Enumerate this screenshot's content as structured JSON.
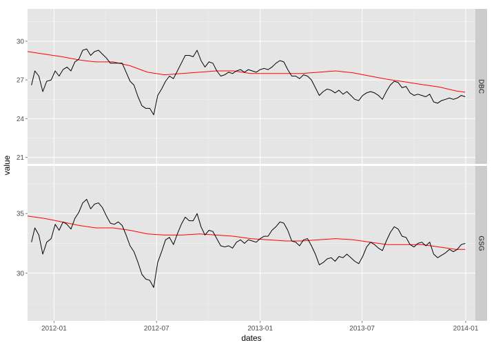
{
  "chart_data": {
    "type": "line",
    "xlabel": "dates",
    "ylabel": "value",
    "x_ticks": [
      "2012-01",
      "2012-07",
      "2013-01",
      "2013-07",
      "2014-01"
    ],
    "x_range": [
      "2011-11-15",
      "2014-01-18"
    ],
    "grid": true,
    "colors": {
      "panel_bg": "#e5e5e5",
      "grid": "#ffffff",
      "strip_bg": "#cccccc",
      "price": "#000000",
      "moving_average": "#ff0000"
    },
    "series_style": [
      {
        "role": "price",
        "color": "#000000"
      },
      {
        "role": "moving_average",
        "color": "#ff0000"
      }
    ],
    "panels": [
      {
        "strip": "DBC",
        "ylim": [
          20.5,
          32.5
        ],
        "y_ticks": [
          21,
          24,
          27,
          30
        ],
        "price": [
          [
            "2011-11-22",
            26.6
          ],
          [
            "2011-11-28",
            27.7
          ],
          [
            "2011-12-05",
            27.3
          ],
          [
            "2011-12-12",
            26.1
          ],
          [
            "2011-12-19",
            26.9
          ],
          [
            "2011-12-27",
            27.0
          ],
          [
            "2012-01-03",
            27.7
          ],
          [
            "2012-01-10",
            27.3
          ],
          [
            "2012-01-17",
            27.8
          ],
          [
            "2012-01-24",
            28.0
          ],
          [
            "2012-01-31",
            27.7
          ],
          [
            "2012-02-07",
            28.4
          ],
          [
            "2012-02-14",
            28.6
          ],
          [
            "2012-02-21",
            29.3
          ],
          [
            "2012-02-28",
            29.4
          ],
          [
            "2012-03-06",
            28.9
          ],
          [
            "2012-03-13",
            29.2
          ],
          [
            "2012-03-20",
            29.3
          ],
          [
            "2012-03-27",
            29.0
          ],
          [
            "2012-04-03",
            28.7
          ],
          [
            "2012-04-10",
            28.3
          ],
          [
            "2012-04-17",
            28.3
          ],
          [
            "2012-04-24",
            28.3
          ],
          [
            "2012-05-01",
            28.3
          ],
          [
            "2012-05-08",
            27.6
          ],
          [
            "2012-05-15",
            26.9
          ],
          [
            "2012-05-22",
            26.6
          ],
          [
            "2012-05-29",
            25.7
          ],
          [
            "2012-06-05",
            25.0
          ],
          [
            "2012-06-12",
            24.8
          ],
          [
            "2012-06-19",
            24.8
          ],
          [
            "2012-06-26",
            24.3
          ],
          [
            "2012-07-03",
            25.8
          ],
          [
            "2012-07-10",
            26.3
          ],
          [
            "2012-07-17",
            26.9
          ],
          [
            "2012-07-24",
            27.3
          ],
          [
            "2012-07-31",
            27.1
          ],
          [
            "2012-08-07",
            27.7
          ],
          [
            "2012-08-14",
            28.3
          ],
          [
            "2012-08-21",
            28.9
          ],
          [
            "2012-08-28",
            28.9
          ],
          [
            "2012-09-04",
            28.8
          ],
          [
            "2012-09-11",
            29.3
          ],
          [
            "2012-09-18",
            28.5
          ],
          [
            "2012-09-25",
            28.0
          ],
          [
            "2012-10-02",
            28.4
          ],
          [
            "2012-10-09",
            28.3
          ],
          [
            "2012-10-16",
            27.7
          ],
          [
            "2012-10-23",
            27.3
          ],
          [
            "2012-10-30",
            27.4
          ],
          [
            "2012-11-06",
            27.6
          ],
          [
            "2012-11-13",
            27.5
          ],
          [
            "2012-11-20",
            27.7
          ],
          [
            "2012-11-27",
            27.8
          ],
          [
            "2012-12-04",
            27.6
          ],
          [
            "2012-12-11",
            27.8
          ],
          [
            "2012-12-18",
            27.7
          ],
          [
            "2012-12-25",
            27.6
          ],
          [
            "2013-01-01",
            27.8
          ],
          [
            "2013-01-08",
            27.9
          ],
          [
            "2013-01-15",
            27.8
          ],
          [
            "2013-01-22",
            28.0
          ],
          [
            "2013-01-29",
            28.3
          ],
          [
            "2013-02-05",
            28.5
          ],
          [
            "2013-02-12",
            28.4
          ],
          [
            "2013-02-19",
            27.8
          ],
          [
            "2013-02-26",
            27.3
          ],
          [
            "2013-03-05",
            27.3
          ],
          [
            "2013-03-12",
            27.1
          ],
          [
            "2013-03-19",
            27.4
          ],
          [
            "2013-03-26",
            27.3
          ],
          [
            "2013-04-02",
            27.0
          ],
          [
            "2013-04-09",
            26.4
          ],
          [
            "2013-04-16",
            25.8
          ],
          [
            "2013-04-23",
            26.1
          ],
          [
            "2013-04-30",
            26.3
          ],
          [
            "2013-05-07",
            26.2
          ],
          [
            "2013-05-14",
            26.0
          ],
          [
            "2013-05-21",
            26.2
          ],
          [
            "2013-05-28",
            25.9
          ],
          [
            "2013-06-04",
            26.1
          ],
          [
            "2013-06-11",
            25.8
          ],
          [
            "2013-06-18",
            25.5
          ],
          [
            "2013-06-25",
            25.4
          ],
          [
            "2013-07-02",
            25.8
          ],
          [
            "2013-07-09",
            26.0
          ],
          [
            "2013-07-16",
            26.1
          ],
          [
            "2013-07-23",
            26.0
          ],
          [
            "2013-07-30",
            25.8
          ],
          [
            "2013-08-06",
            25.5
          ],
          [
            "2013-08-13",
            26.1
          ],
          [
            "2013-08-20",
            26.6
          ],
          [
            "2013-08-27",
            26.9
          ],
          [
            "2013-09-03",
            26.8
          ],
          [
            "2013-09-10",
            26.4
          ],
          [
            "2013-09-17",
            26.5
          ],
          [
            "2013-09-24",
            26.0
          ],
          [
            "2013-10-01",
            25.8
          ],
          [
            "2013-10-08",
            25.9
          ],
          [
            "2013-10-15",
            25.8
          ],
          [
            "2013-10-22",
            25.7
          ],
          [
            "2013-10-29",
            25.9
          ],
          [
            "2013-11-05",
            25.3
          ],
          [
            "2013-11-12",
            25.2
          ],
          [
            "2013-11-19",
            25.4
          ],
          [
            "2013-11-26",
            25.5
          ],
          [
            "2013-12-03",
            25.6
          ],
          [
            "2013-12-10",
            25.5
          ],
          [
            "2013-12-17",
            25.6
          ],
          [
            "2013-12-24",
            25.8
          ],
          [
            "2013-12-31",
            25.7
          ]
        ],
        "moving_average": [
          [
            "2011-11-15",
            29.2
          ],
          [
            "2011-12-15",
            29.0
          ],
          [
            "2012-01-15",
            28.8
          ],
          [
            "2012-02-15",
            28.55
          ],
          [
            "2012-03-15",
            28.4
          ],
          [
            "2012-04-15",
            28.4
          ],
          [
            "2012-05-15",
            28.1
          ],
          [
            "2012-06-15",
            27.6
          ],
          [
            "2012-07-15",
            27.4
          ],
          [
            "2012-08-15",
            27.5
          ],
          [
            "2012-09-15",
            27.6
          ],
          [
            "2012-10-15",
            27.7
          ],
          [
            "2012-11-15",
            27.7
          ],
          [
            "2012-12-15",
            27.5
          ],
          [
            "2013-01-15",
            27.5
          ],
          [
            "2013-02-15",
            27.5
          ],
          [
            "2013-03-15",
            27.5
          ],
          [
            "2013-04-15",
            27.6
          ],
          [
            "2013-05-15",
            27.7
          ],
          [
            "2013-06-15",
            27.55
          ],
          [
            "2013-07-15",
            27.3
          ],
          [
            "2013-08-15",
            27.05
          ],
          [
            "2013-09-15",
            26.85
          ],
          [
            "2013-10-15",
            26.65
          ],
          [
            "2013-11-15",
            26.45
          ],
          [
            "2013-12-15",
            26.15
          ],
          [
            "2013-12-31",
            26.05
          ]
        ]
      },
      {
        "strip": "GSG",
        "ylim": [
          26.0,
          39.0
        ],
        "y_ticks": [
          30,
          35
        ],
        "price": [
          [
            "2011-11-22",
            32.6
          ],
          [
            "2011-11-28",
            33.8
          ],
          [
            "2011-12-05",
            33.2
          ],
          [
            "2011-12-12",
            31.6
          ],
          [
            "2011-12-19",
            32.6
          ],
          [
            "2011-12-27",
            32.9
          ],
          [
            "2012-01-03",
            34.1
          ],
          [
            "2012-01-10",
            33.6
          ],
          [
            "2012-01-17",
            34.3
          ],
          [
            "2012-01-24",
            34.1
          ],
          [
            "2012-01-31",
            33.7
          ],
          [
            "2012-02-07",
            34.6
          ],
          [
            "2012-02-14",
            35.1
          ],
          [
            "2012-02-21",
            35.9
          ],
          [
            "2012-02-28",
            36.2
          ],
          [
            "2012-03-06",
            35.4
          ],
          [
            "2012-03-13",
            35.8
          ],
          [
            "2012-03-20",
            35.9
          ],
          [
            "2012-03-27",
            35.5
          ],
          [
            "2012-04-03",
            34.8
          ],
          [
            "2012-04-10",
            34.2
          ],
          [
            "2012-04-17",
            34.1
          ],
          [
            "2012-04-24",
            34.3
          ],
          [
            "2012-05-01",
            34.0
          ],
          [
            "2012-05-08",
            33.2
          ],
          [
            "2012-05-15",
            32.3
          ],
          [
            "2012-05-22",
            31.8
          ],
          [
            "2012-05-29",
            30.9
          ],
          [
            "2012-06-05",
            29.9
          ],
          [
            "2012-06-12",
            29.5
          ],
          [
            "2012-06-19",
            29.4
          ],
          [
            "2012-06-26",
            28.8
          ],
          [
            "2012-07-03",
            30.9
          ],
          [
            "2012-07-10",
            31.8
          ],
          [
            "2012-07-17",
            32.8
          ],
          [
            "2012-07-24",
            33.0
          ],
          [
            "2012-07-31",
            32.4
          ],
          [
            "2012-08-07",
            33.3
          ],
          [
            "2012-08-14",
            34.1
          ],
          [
            "2012-08-21",
            34.7
          ],
          [
            "2012-08-28",
            34.4
          ],
          [
            "2012-09-04",
            34.4
          ],
          [
            "2012-09-11",
            35.0
          ],
          [
            "2012-09-18",
            33.9
          ],
          [
            "2012-09-25",
            33.2
          ],
          [
            "2012-10-02",
            33.6
          ],
          [
            "2012-10-09",
            33.5
          ],
          [
            "2012-10-16",
            32.9
          ],
          [
            "2012-10-23",
            32.3
          ],
          [
            "2012-10-30",
            32.2
          ],
          [
            "2012-11-06",
            32.3
          ],
          [
            "2012-11-13",
            32.1
          ],
          [
            "2012-11-20",
            32.6
          ],
          [
            "2012-11-27",
            32.8
          ],
          [
            "2012-12-04",
            32.5
          ],
          [
            "2012-12-11",
            32.8
          ],
          [
            "2012-12-18",
            32.7
          ],
          [
            "2012-12-25",
            32.6
          ],
          [
            "2013-01-01",
            32.9
          ],
          [
            "2013-01-08",
            33.1
          ],
          [
            "2013-01-15",
            33.1
          ],
          [
            "2013-01-22",
            33.6
          ],
          [
            "2013-01-29",
            33.9
          ],
          [
            "2013-02-05",
            34.3
          ],
          [
            "2013-02-12",
            34.2
          ],
          [
            "2013-02-19",
            33.6
          ],
          [
            "2013-02-26",
            32.7
          ],
          [
            "2013-03-05",
            32.6
          ],
          [
            "2013-03-12",
            32.3
          ],
          [
            "2013-03-19",
            32.8
          ],
          [
            "2013-03-26",
            32.9
          ],
          [
            "2013-04-02",
            32.3
          ],
          [
            "2013-04-09",
            31.6
          ],
          [
            "2013-04-16",
            30.7
          ],
          [
            "2013-04-23",
            30.9
          ],
          [
            "2013-04-30",
            31.2
          ],
          [
            "2013-05-07",
            31.3
          ],
          [
            "2013-05-14",
            31.0
          ],
          [
            "2013-05-21",
            31.4
          ],
          [
            "2013-05-28",
            31.3
          ],
          [
            "2013-06-04",
            31.6
          ],
          [
            "2013-06-11",
            31.3
          ],
          [
            "2013-06-18",
            31.0
          ],
          [
            "2013-06-25",
            30.8
          ],
          [
            "2013-07-02",
            31.4
          ],
          [
            "2013-07-09",
            32.2
          ],
          [
            "2013-07-16",
            32.6
          ],
          [
            "2013-07-23",
            32.4
          ],
          [
            "2013-07-30",
            32.1
          ],
          [
            "2013-08-06",
            31.9
          ],
          [
            "2013-08-13",
            32.7
          ],
          [
            "2013-08-20",
            33.4
          ],
          [
            "2013-08-27",
            33.9
          ],
          [
            "2013-09-03",
            33.7
          ],
          [
            "2013-09-10",
            33.1
          ],
          [
            "2013-09-17",
            33.0
          ],
          [
            "2013-09-24",
            32.4
          ],
          [
            "2013-10-01",
            32.2
          ],
          [
            "2013-10-08",
            32.5
          ],
          [
            "2013-10-15",
            32.6
          ],
          [
            "2013-10-22",
            32.3
          ],
          [
            "2013-10-29",
            32.6
          ],
          [
            "2013-11-05",
            31.6
          ],
          [
            "2013-11-12",
            31.3
          ],
          [
            "2013-11-19",
            31.5
          ],
          [
            "2013-11-26",
            31.7
          ],
          [
            "2013-12-03",
            32.0
          ],
          [
            "2013-12-10",
            31.8
          ],
          [
            "2013-12-17",
            32.0
          ],
          [
            "2013-12-24",
            32.4
          ],
          [
            "2013-12-31",
            32.5
          ]
        ],
        "moving_average": [
          [
            "2011-11-15",
            34.8
          ],
          [
            "2011-12-15",
            34.6
          ],
          [
            "2012-01-15",
            34.3
          ],
          [
            "2012-02-15",
            34.0
          ],
          [
            "2012-03-15",
            33.8
          ],
          [
            "2012-04-15",
            33.8
          ],
          [
            "2012-05-15",
            33.6
          ],
          [
            "2012-06-15",
            33.3
          ],
          [
            "2012-07-15",
            33.2
          ],
          [
            "2012-08-15",
            33.2
          ],
          [
            "2012-09-15",
            33.3
          ],
          [
            "2012-10-15",
            33.2
          ],
          [
            "2012-11-15",
            33.1
          ],
          [
            "2012-12-15",
            32.9
          ],
          [
            "2013-01-15",
            32.8
          ],
          [
            "2013-02-15",
            32.7
          ],
          [
            "2013-03-15",
            32.7
          ],
          [
            "2013-04-15",
            32.8
          ],
          [
            "2013-05-15",
            32.9
          ],
          [
            "2013-06-15",
            32.8
          ],
          [
            "2013-07-15",
            32.6
          ],
          [
            "2013-08-15",
            32.4
          ],
          [
            "2013-09-15",
            32.4
          ],
          [
            "2013-10-15",
            32.4
          ],
          [
            "2013-11-15",
            32.2
          ],
          [
            "2013-12-15",
            32.0
          ],
          [
            "2013-12-31",
            32.0
          ]
        ]
      }
    ]
  }
}
